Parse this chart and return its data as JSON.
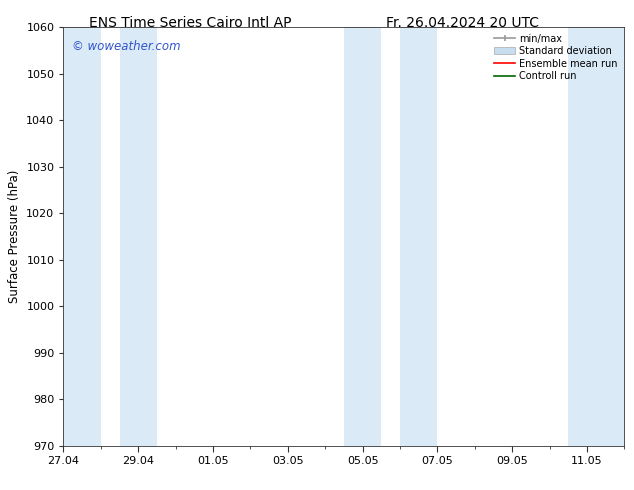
{
  "title_left": "ENS Time Series Cairo Intl AP",
  "title_right": "Fr. 26.04.2024 20 UTC",
  "ylabel": "Surface Pressure (hPa)",
  "ylim": [
    970,
    1060
  ],
  "yticks": [
    970,
    980,
    990,
    1000,
    1010,
    1020,
    1030,
    1040,
    1050,
    1060
  ],
  "xlim": [
    0,
    15
  ],
  "xtick_labels": [
    "27.04",
    "29.04",
    "01.05",
    "03.05",
    "05.05",
    "07.05",
    "09.05",
    "11.05"
  ],
  "xtick_positions": [
    0,
    2,
    4,
    6,
    8,
    10,
    12,
    14
  ],
  "shaded_bands": [
    {
      "start": 0,
      "end": 1
    },
    {
      "start": 1.5,
      "end": 2.5
    },
    {
      "start": 7.5,
      "end": 8.5
    },
    {
      "start": 9.0,
      "end": 10.0
    },
    {
      "start": 13.5,
      "end": 15
    }
  ],
  "band_color": "#daeaf7",
  "background_color": "#ffffff",
  "watermark_text": "© woweather.com",
  "watermark_color": "#3355cc",
  "grid_color": "#dddddd",
  "tick_color": "#333333",
  "spine_color": "#333333",
  "title_fontsize": 10,
  "label_fontsize": 8.5,
  "tick_fontsize": 8
}
